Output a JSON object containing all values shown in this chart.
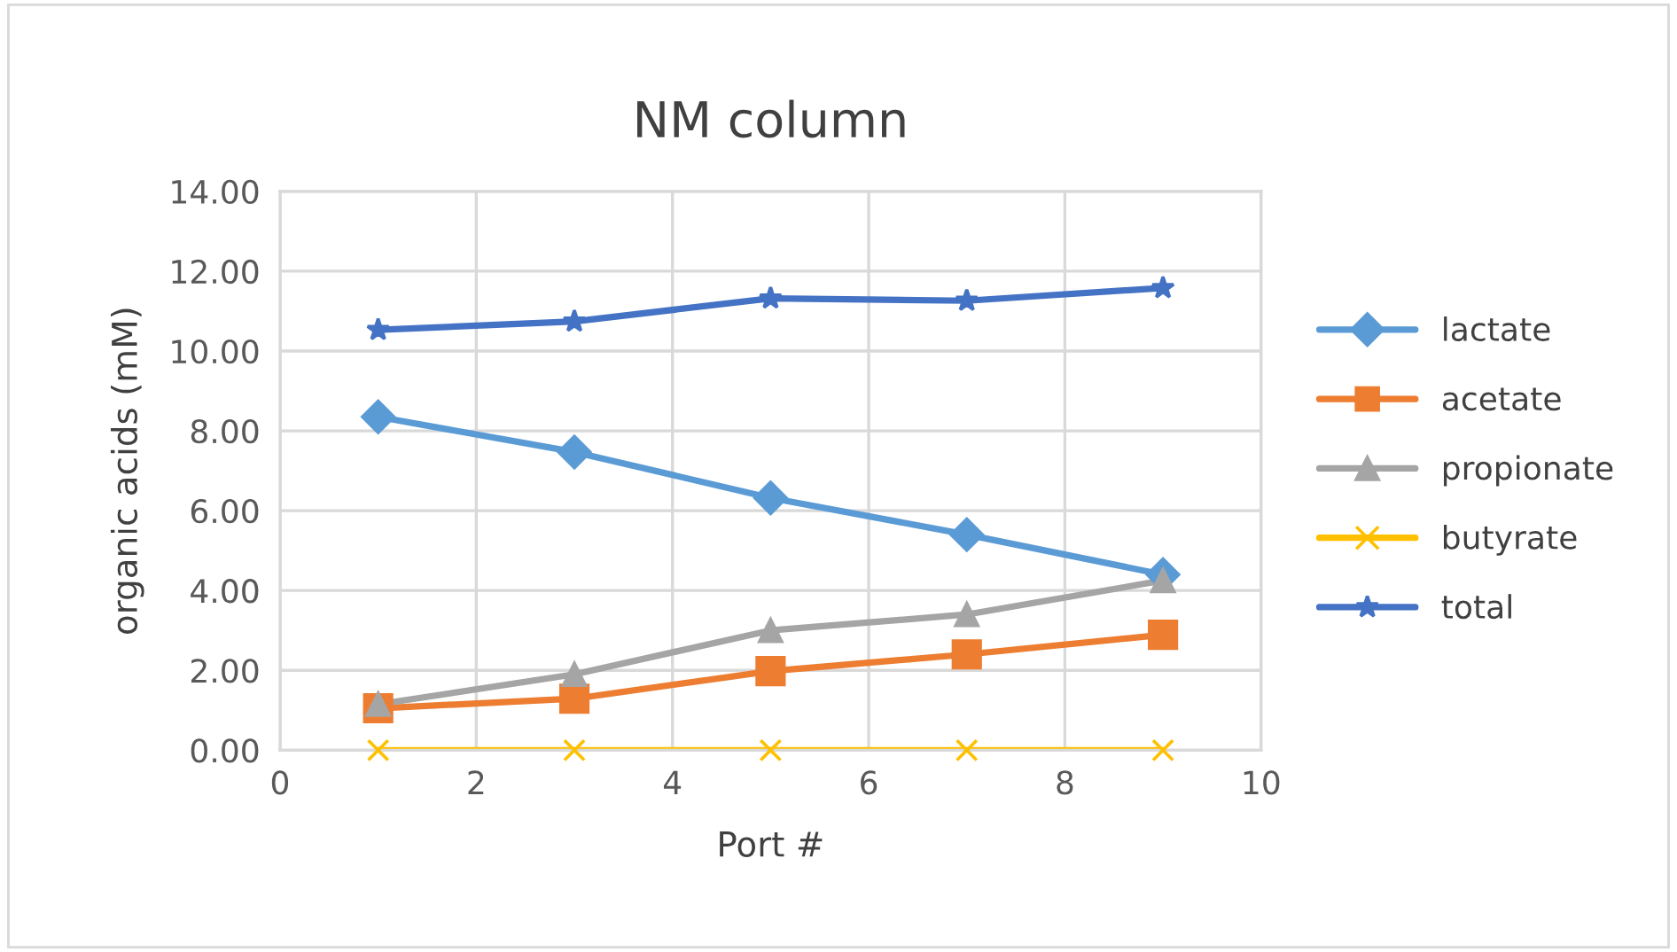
{
  "chart_data": {
    "type": "line",
    "title": "NM column",
    "xlabel": "Port #",
    "ylabel": "organic acids (mM)",
    "x": [
      1,
      3,
      5,
      7,
      9
    ],
    "series": [
      {
        "name": "lactate",
        "color": "#5b9bd5",
        "marker": "diamond",
        "values": [
          8.35,
          7.47,
          6.32,
          5.4,
          4.4
        ]
      },
      {
        "name": "acetate",
        "color": "#ed7d31",
        "marker": "square",
        "values": [
          1.05,
          1.29,
          1.98,
          2.4,
          2.89
        ]
      },
      {
        "name": "propionate",
        "color": "#a5a5a5",
        "marker": "triangle",
        "values": [
          1.15,
          1.9,
          3.0,
          3.4,
          4.25
        ]
      },
      {
        "name": "butyrate",
        "color": "#ffc000",
        "marker": "cross",
        "values": [
          0,
          0,
          0,
          0,
          0
        ]
      },
      {
        "name": "total",
        "color": "#4472c4",
        "marker": "star",
        "values": [
          10.53,
          10.74,
          11.32,
          11.26,
          11.58
        ]
      }
    ],
    "xlim": [
      0,
      10
    ],
    "xticks": [
      0,
      2,
      4,
      6,
      8,
      10
    ],
    "ylim": [
      0,
      14
    ],
    "yticks": [
      {
        "value": 0,
        "label": "0.00"
      },
      {
        "value": 2,
        "label": "2.00"
      },
      {
        "value": 4,
        "label": "4.00"
      },
      {
        "value": 6,
        "label": "6.00"
      },
      {
        "value": 8,
        "label": "8.00"
      },
      {
        "value": 10,
        "label": "10.00"
      },
      {
        "value": 12,
        "label": "12.00"
      },
      {
        "value": 14,
        "label": "14.00"
      }
    ],
    "grid": true,
    "legend": "right",
    "line_style": "solid"
  }
}
